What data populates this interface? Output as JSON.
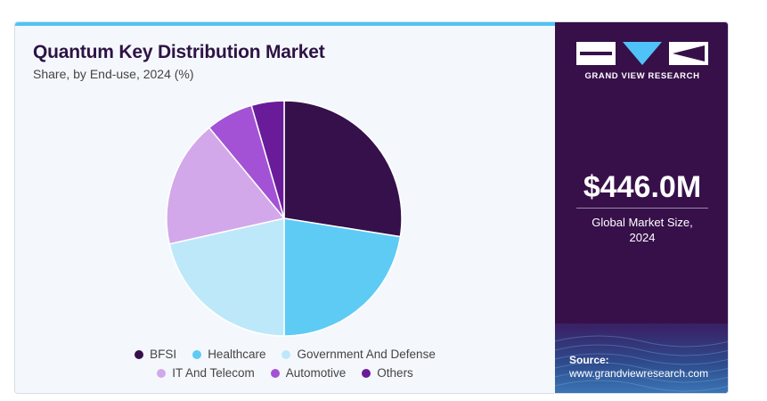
{
  "header": {
    "title": "Quantum Key Distribution Market",
    "subtitle": "Share, by End-use, 2024 (%)"
  },
  "chart_data": {
    "type": "pie",
    "title": "Quantum Key Distribution Market",
    "subtitle": "Share, by End-use, 2024 (%)",
    "categories": [
      "BFSI",
      "Healthcare",
      "Government And Defense",
      "IT And Telecom",
      "Automotive",
      "Others"
    ],
    "values": [
      27.5,
      22.5,
      21.5,
      17.5,
      6.5,
      4.5
    ],
    "colors": [
      "#35104a",
      "#5ecbf5",
      "#bde8f9",
      "#d3a8ea",
      "#a352d6",
      "#6a1b9a"
    ],
    "legend_position": "bottom",
    "start_angle_deg": 0,
    "direction": "clockwise"
  },
  "legend": {
    "rows": [
      [
        0,
        1,
        2
      ],
      [
        3,
        4,
        5
      ]
    ]
  },
  "brand": {
    "name": "GRAND VIEW RESEARCH",
    "logo_icon": "gvr-logo-icon"
  },
  "stats": {
    "market_value": "$446.0M",
    "caption_line1": "Global Market Size,",
    "caption_line2": "2024"
  },
  "source": {
    "label": "Source:",
    "url": "www.grandviewresearch.com"
  },
  "colors": {
    "accent": "#4fc3f7",
    "panel": "#37104a",
    "title": "#2e1244"
  }
}
